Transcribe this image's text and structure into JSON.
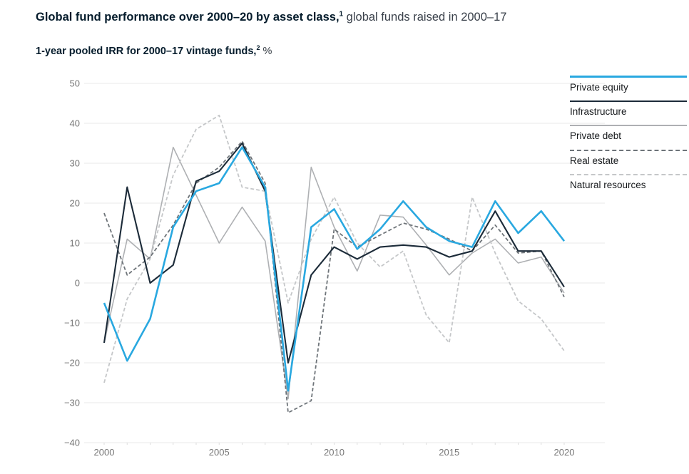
{
  "header": {
    "title_bold": "Global fund performance over 2000–20 by asset class,",
    "title_sup": "1",
    "title_rest": " global funds raised in 2000–17",
    "subtitle_bold": "1-year pooled IRR for 2000–17 vintage funds,",
    "subtitle_sup": "2",
    "subtitle_rest": " %"
  },
  "legend": {
    "position": "right",
    "items": [
      {
        "label": "Private equity",
        "color": "#29a8e0",
        "style": "solid",
        "thickness": 3
      },
      {
        "label": "Infrastructure",
        "color": "#1c2b39",
        "style": "solid",
        "thickness": 2
      },
      {
        "label": "Private debt",
        "color": "#aeb0b3",
        "style": "solid",
        "thickness": 2
      },
      {
        "label": "Real estate",
        "color": "#6e7479",
        "style": "dashed",
        "thickness": 2
      },
      {
        "label": "Natural resources",
        "color": "#c5c7c9",
        "style": "dashed",
        "thickness": 2
      }
    ]
  },
  "chart_data": {
    "type": "line",
    "title": "Global fund performance over 2000–20 by asset class, global funds raised in 2000–17",
    "subtitle": "1-year pooled IRR for 2000–17 vintage funds, %",
    "xlabel": "",
    "ylabel": "",
    "x": [
      2000,
      2001,
      2002,
      2003,
      2004,
      2005,
      2006,
      2007,
      2008,
      2009,
      2010,
      2011,
      2012,
      2013,
      2014,
      2015,
      2016,
      2017,
      2018,
      2019,
      2020
    ],
    "xticks": [
      2000,
      2005,
      2010,
      2015,
      2020
    ],
    "ylim": [
      -40,
      50
    ],
    "ytick_step": 10,
    "grid": true,
    "axis_text_color": "#767676",
    "grid_color": "#e9e9e9",
    "series": [
      {
        "name": "Private equity",
        "color": "#29a8e0",
        "dash": null,
        "width": 2.6,
        "values": [
          -5,
          -19.5,
          -9,
          14,
          23,
          25,
          34,
          24,
          -27,
          14,
          18.5,
          8.5,
          13.5,
          20.5,
          14,
          10.5,
          9,
          20.5,
          12.5,
          18,
          10.5
        ]
      },
      {
        "name": "Infrastructure",
        "color": "#1c2b39",
        "dash": null,
        "width": 2.1,
        "values": [
          -15,
          24,
          0,
          4.5,
          25.5,
          28,
          35,
          23,
          -20,
          2,
          9,
          6,
          9,
          9.5,
          9,
          6.5,
          8,
          18,
          8,
          8,
          -1
        ]
      },
      {
        "name": "Private debt",
        "color": "#aeb0b3",
        "dash": null,
        "width": 1.6,
        "values": [
          -15,
          11,
          6,
          34,
          22,
          10,
          19,
          10.5,
          -29,
          29,
          14,
          3,
          17,
          16.5,
          9.5,
          2,
          7.5,
          11,
          5,
          6.5,
          -2.5
        ]
      },
      {
        "name": "Real estate",
        "color": "#6e7479",
        "dash": "5,3",
        "width": 1.8,
        "values": [
          17.5,
          2,
          6.5,
          14.5,
          25,
          29,
          35.5,
          25,
          -32.5,
          -29.5,
          13.5,
          9,
          12,
          15,
          13.5,
          11,
          8,
          14.5,
          7.5,
          8,
          -3.5
        ]
      },
      {
        "name": "Natural resources",
        "color": "#c5c7c9",
        "dash": "5,3",
        "width": 1.8,
        "values": [
          -25,
          -4,
          6,
          27,
          38.5,
          42,
          24,
          23,
          -5,
          11,
          21.5,
          10,
          4,
          8,
          -8,
          -15,
          21.5,
          7.5,
          -4.5,
          -9,
          -17
        ]
      }
    ]
  }
}
